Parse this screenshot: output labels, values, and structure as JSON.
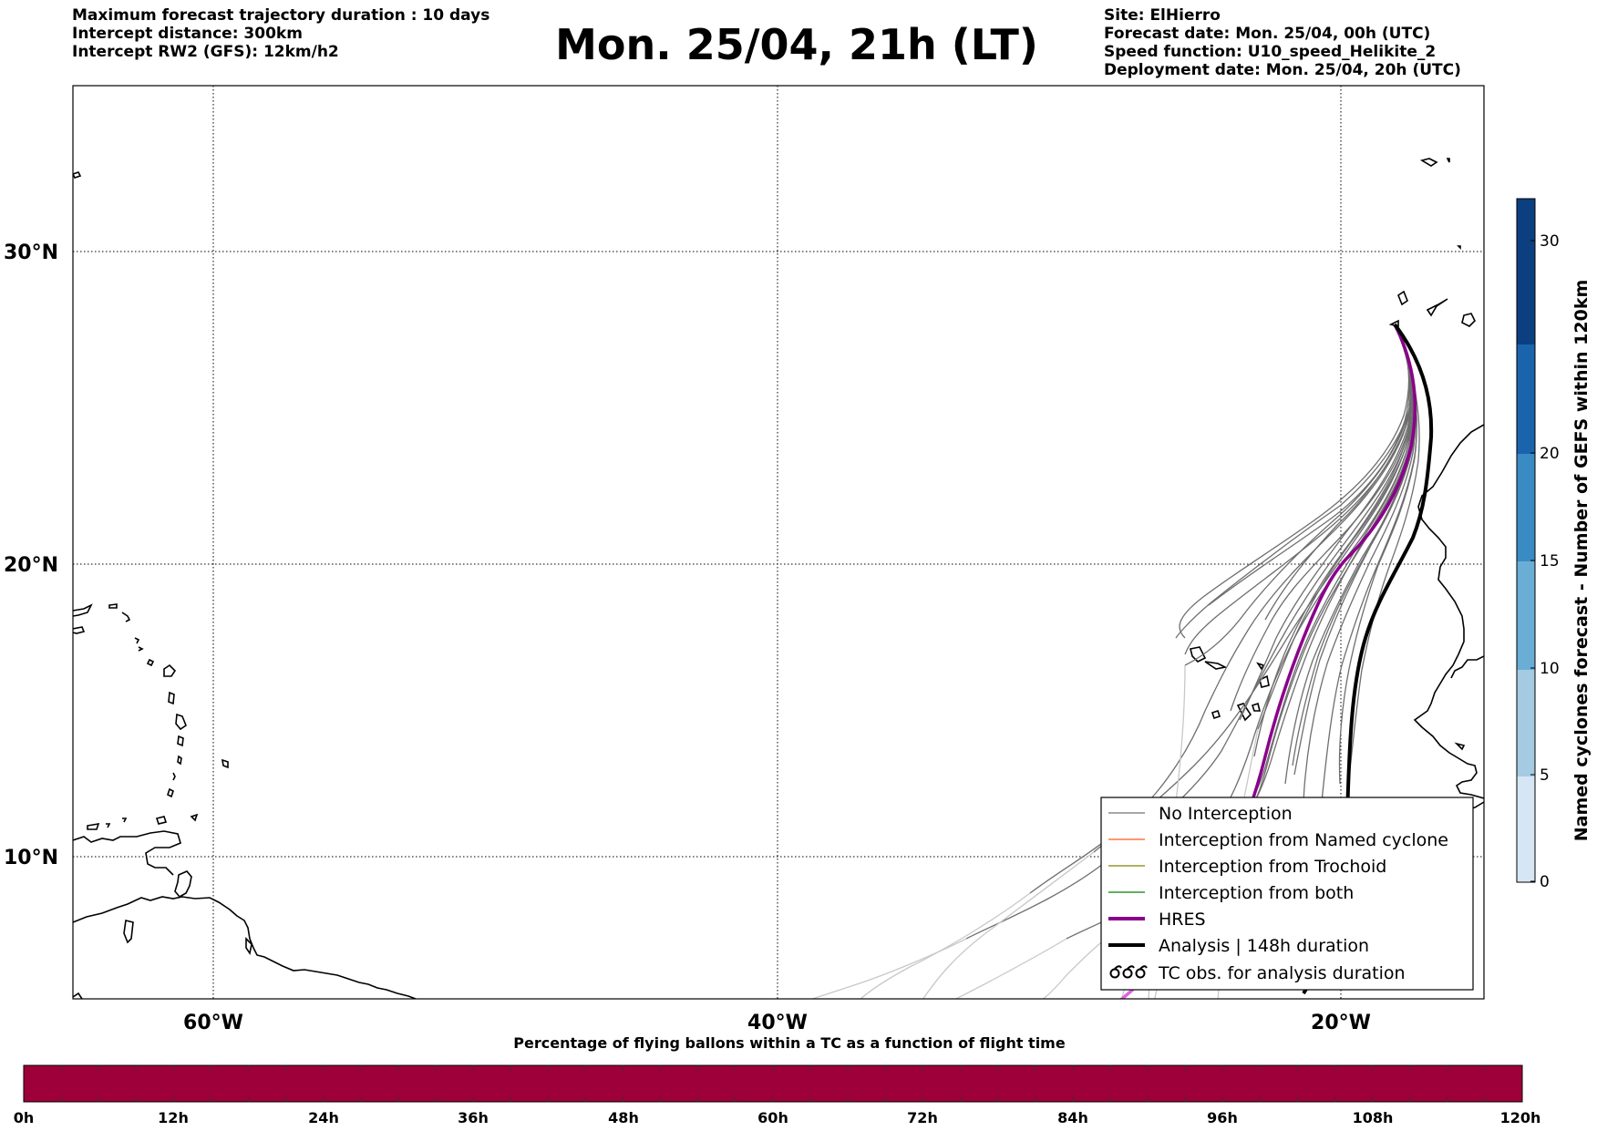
{
  "header": {
    "left_lines": [
      "Maximum forecast trajectory duration : 10 days",
      "Intercept distance: 300km",
      "Intercept RW2 (GFS):  12km/h2"
    ],
    "title": "Mon. 25/04, 21h (LT)",
    "right_lines": [
      "Site: ElHierro",
      "Forecast date: Mon. 25/04, 00h (UTC)",
      "Speed function: U10_speed_Helikite_2",
      "Deployment date: Mon. 25/04, 20h (UTC)"
    ]
  },
  "map": {
    "lat_labels": [
      "30°N",
      "20°N",
      "10°N"
    ],
    "lon_labels": [
      "60°W",
      "40°W",
      "20°W"
    ]
  },
  "legend": {
    "items": [
      {
        "label": "No Interception",
        "color": "#707070",
        "style": "thin"
      },
      {
        "label": "Interception from Named cyclone",
        "color": "#ff5a1f",
        "style": "thin"
      },
      {
        "label": "Interception from Trochoid",
        "color": "#808000",
        "style": "thin"
      },
      {
        "label": "Interception from both",
        "color": "#008000",
        "style": "thin"
      },
      {
        "label": "HRES",
        "color": "#8b008b",
        "style": "thick"
      },
      {
        "label": "Analysis | 148h duration",
        "color": "#000000",
        "style": "thick"
      },
      {
        "label": "TC obs. for analysis duration",
        "color": "#000000",
        "style": "symbol"
      }
    ]
  },
  "colorbar_right": {
    "label": "Named cyclones forecast - Number of GEFS within 120km",
    "ticks": [
      "0",
      "5",
      "10",
      "15",
      "20",
      "30"
    ],
    "colors": [
      "#d7e6f5",
      "#a5cbe3",
      "#6aaed6",
      "#3a8bc4",
      "#1a64ad",
      "#0b3f80"
    ]
  },
  "bottom_bar": {
    "title": "Percentage of flying ballons within a TC as a function of flight time",
    "ticks": [
      "0h",
      "12h",
      "24h",
      "36h",
      "48h",
      "60h",
      "72h",
      "84h",
      "96h",
      "108h",
      "120h"
    ],
    "color": "#9e003a"
  }
}
